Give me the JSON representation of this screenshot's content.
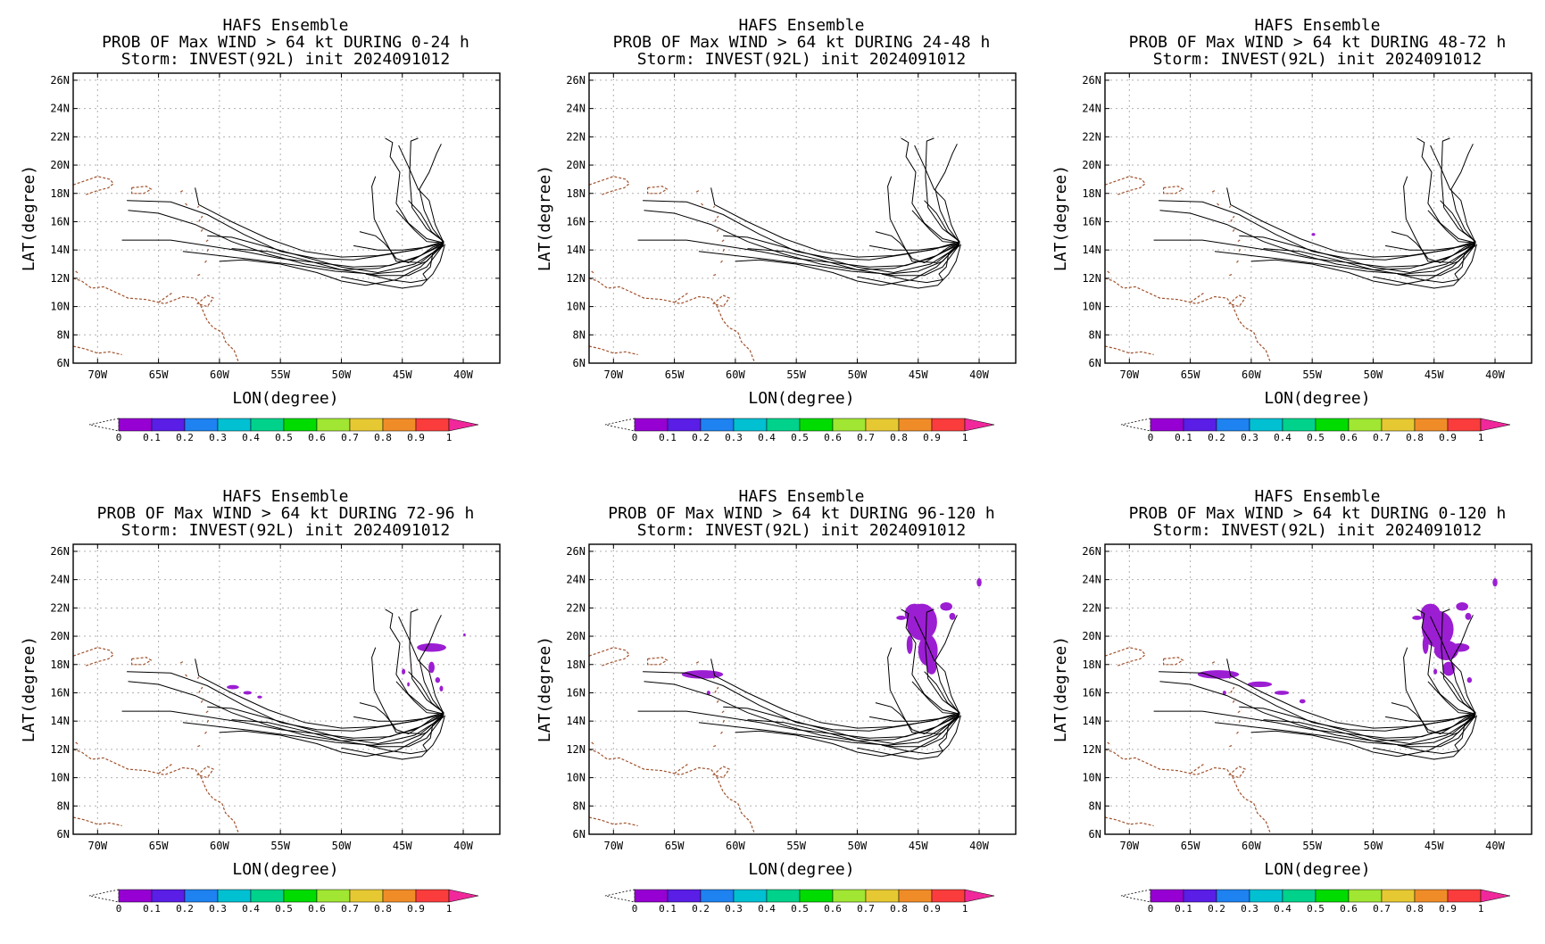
{
  "common": {
    "title_line1": "HAFS Ensemble",
    "title_line3": "Storm: INVEST(92L) init 2024091012",
    "xlabel": "LON(degree)",
    "ylabel": "LAT(degree)",
    "colorbar_ticks": [
      "0",
      "0.1",
      "0.2",
      "0.3",
      "0.4",
      "0.5",
      "0.6",
      "0.7",
      "0.8",
      "0.9",
      "1"
    ],
    "colorbar_colors": [
      "#9600d2",
      "#5a1ee6",
      "#1e82f0",
      "#00c0d2",
      "#00d28c",
      "#00dc00",
      "#a0e632",
      "#e6c832",
      "#f08c28",
      "#fa3c3c"
    ],
    "colorbar_over_color": "#f0289b",
    "coast_color": "#a0522d",
    "track_color": "#000000",
    "prob_color": "#9b1ed2"
  },
  "chart_data": [
    {
      "type": "contour-map",
      "title": "PROB OF Max WIND > 64 kt DURING  0-24 h",
      "xlim": [
        -72,
        -37
      ],
      "ylim": [
        6,
        26.5
      ],
      "xticks": [
        -70,
        -65,
        -60,
        -55,
        -50,
        -45,
        -40
      ],
      "xtick_labels": [
        "70W",
        "65W",
        "60W",
        "55W",
        "50W",
        "45W",
        "40W"
      ],
      "yticks": [
        6,
        8,
        10,
        12,
        14,
        16,
        18,
        20,
        22,
        24,
        26
      ],
      "ytick_labels": [
        "6N",
        "8N",
        "10N",
        "12N",
        "14N",
        "16N",
        "18N",
        "20N",
        "22N",
        "24N",
        "26N"
      ],
      "grid": true,
      "prob_regions": []
    },
    {
      "type": "contour-map",
      "title": "PROB OF Max WIND > 64 kt DURING 24-48 h",
      "xlim": [
        -72,
        -37
      ],
      "ylim": [
        6,
        26.5
      ],
      "xticks": [
        -70,
        -65,
        -60,
        -55,
        -50,
        -45,
        -40
      ],
      "xtick_labels": [
        "70W",
        "65W",
        "60W",
        "55W",
        "50W",
        "45W",
        "40W"
      ],
      "yticks": [
        6,
        8,
        10,
        12,
        14,
        16,
        18,
        20,
        22,
        24,
        26
      ],
      "ytick_labels": [
        "6N",
        "8N",
        "10N",
        "12N",
        "14N",
        "16N",
        "18N",
        "20N",
        "22N",
        "24N",
        "26N"
      ],
      "grid": true,
      "prob_regions": []
    },
    {
      "type": "contour-map",
      "title": "PROB OF Max WIND > 64 kt DURING 48-72 h",
      "xlim": [
        -72,
        -37
      ],
      "ylim": [
        6,
        26.5
      ],
      "xticks": [
        -70,
        -65,
        -60,
        -55,
        -50,
        -45,
        -40
      ],
      "xtick_labels": [
        "70W",
        "65W",
        "60W",
        "55W",
        "50W",
        "45W",
        "40W"
      ],
      "yticks": [
        6,
        8,
        10,
        12,
        14,
        16,
        18,
        20,
        22,
        24,
        26
      ],
      "ytick_labels": [
        "6N",
        "8N",
        "10N",
        "12N",
        "14N",
        "16N",
        "18N",
        "20N",
        "22N",
        "24N",
        "26N"
      ],
      "grid": true,
      "prob_regions": [
        {
          "lon": -54.9,
          "lat": 15.1,
          "dlon": 0.3,
          "dlat": 0.2
        }
      ]
    },
    {
      "type": "contour-map",
      "title": "PROB OF Max WIND > 64 kt DURING 72-96 h",
      "xlim": [
        -72,
        -37
      ],
      "ylim": [
        6,
        26.5
      ],
      "xticks": [
        -70,
        -65,
        -60,
        -55,
        -50,
        -45,
        -40
      ],
      "xtick_labels": [
        "70W",
        "65W",
        "60W",
        "55W",
        "50W",
        "45W",
        "40W"
      ],
      "yticks": [
        6,
        8,
        10,
        12,
        14,
        16,
        18,
        20,
        22,
        24,
        26
      ],
      "ytick_labels": [
        "6N",
        "8N",
        "10N",
        "12N",
        "14N",
        "16N",
        "18N",
        "20N",
        "22N",
        "24N",
        "26N"
      ],
      "grid": true,
      "prob_regions": [
        {
          "lon": -58.9,
          "lat": 16.4,
          "dlon": 1.0,
          "dlat": 0.3
        },
        {
          "lon": -57.7,
          "lat": 16.0,
          "dlon": 0.7,
          "dlat": 0.25
        },
        {
          "lon": -56.7,
          "lat": 15.7,
          "dlon": 0.4,
          "dlat": 0.2
        },
        {
          "lon": -42.6,
          "lat": 19.2,
          "dlon": 2.4,
          "dlat": 0.6
        },
        {
          "lon": -39.9,
          "lat": 20.1,
          "dlon": 0.2,
          "dlat": 0.2
        },
        {
          "lon": -42.6,
          "lat": 17.8,
          "dlon": 0.5,
          "dlat": 0.8
        },
        {
          "lon": -42.1,
          "lat": 16.9,
          "dlon": 0.4,
          "dlat": 0.4
        },
        {
          "lon": -41.8,
          "lat": 16.3,
          "dlon": 0.3,
          "dlat": 0.4
        },
        {
          "lon": -44.9,
          "lat": 17.5,
          "dlon": 0.3,
          "dlat": 0.4
        },
        {
          "lon": -44.5,
          "lat": 16.6,
          "dlon": 0.2,
          "dlat": 0.3
        }
      ]
    },
    {
      "type": "contour-map",
      "title": "PROB OF Max WIND > 64 kt DURING 96-120 h",
      "xlim": [
        -72,
        -37
      ],
      "ylim": [
        6,
        26.5
      ],
      "xticks": [
        -70,
        -65,
        -60,
        -55,
        -50,
        -45,
        -40
      ],
      "xtick_labels": [
        "70W",
        "65W",
        "60W",
        "55W",
        "50W",
        "45W",
        "40W"
      ],
      "yticks": [
        6,
        8,
        10,
        12,
        14,
        16,
        18,
        20,
        22,
        24,
        26
      ],
      "ytick_labels": [
        "6N",
        "8N",
        "10N",
        "12N",
        "14N",
        "16N",
        "18N",
        "20N",
        "22N",
        "24N",
        "26N"
      ],
      "grid": true,
      "prob_regions": [
        {
          "lon": -62.7,
          "lat": 17.3,
          "dlon": 3.4,
          "dlat": 0.6
        },
        {
          "lon": -62.2,
          "lat": 16.0,
          "dlon": 0.3,
          "dlat": 0.3
        },
        {
          "lon": -45.3,
          "lat": 21.6,
          "dlon": 1.6,
          "dlat": 1.4
        },
        {
          "lon": -44.7,
          "lat": 21.0,
          "dlon": 2.5,
          "dlat": 2.6
        },
        {
          "lon": -44.2,
          "lat": 19.0,
          "dlon": 1.6,
          "dlat": 2.2
        },
        {
          "lon": -43.9,
          "lat": 17.8,
          "dlon": 0.8,
          "dlat": 1.0
        },
        {
          "lon": -46.4,
          "lat": 21.3,
          "dlon": 0.8,
          "dlat": 0.3
        },
        {
          "lon": -45.7,
          "lat": 19.4,
          "dlon": 0.5,
          "dlat": 1.3
        },
        {
          "lon": -42.7,
          "lat": 22.1,
          "dlon": 1.0,
          "dlat": 0.6
        },
        {
          "lon": -42.2,
          "lat": 21.4,
          "dlon": 0.5,
          "dlat": 0.5
        },
        {
          "lon": -40.0,
          "lat": 23.8,
          "dlon": 0.4,
          "dlat": 0.6
        }
      ]
    },
    {
      "type": "contour-map",
      "title": "PROB OF Max WIND > 64 kt DURING 0-120 h",
      "xlim": [
        -72,
        -37
      ],
      "ylim": [
        6,
        26.5
      ],
      "xticks": [
        -70,
        -65,
        -60,
        -55,
        -50,
        -45,
        -40
      ],
      "xtick_labels": [
        "70W",
        "65W",
        "60W",
        "55W",
        "50W",
        "45W",
        "40W"
      ],
      "yticks": [
        6,
        8,
        10,
        12,
        14,
        16,
        18,
        20,
        22,
        24,
        26
      ],
      "ytick_labels": [
        "6N",
        "8N",
        "10N",
        "12N",
        "14N",
        "16N",
        "18N",
        "20N",
        "22N",
        "24N",
        "26N"
      ],
      "grid": true,
      "prob_regions": [
        {
          "lon": -62.7,
          "lat": 17.3,
          "dlon": 3.4,
          "dlat": 0.6
        },
        {
          "lon": -59.3,
          "lat": 16.6,
          "dlon": 2.0,
          "dlat": 0.4
        },
        {
          "lon": -57.5,
          "lat": 16.0,
          "dlon": 1.2,
          "dlat": 0.3
        },
        {
          "lon": -55.8,
          "lat": 15.4,
          "dlon": 0.5,
          "dlat": 0.3
        },
        {
          "lon": -62.2,
          "lat": 16.0,
          "dlon": 0.3,
          "dlat": 0.3
        },
        {
          "lon": -45.3,
          "lat": 21.6,
          "dlon": 1.6,
          "dlat": 1.4
        },
        {
          "lon": -44.7,
          "lat": 20.5,
          "dlon": 2.6,
          "dlat": 2.6
        },
        {
          "lon": -44.0,
          "lat": 19.0,
          "dlon": 2.0,
          "dlat": 1.4
        },
        {
          "lon": -42.9,
          "lat": 19.2,
          "dlon": 1.6,
          "dlat": 0.6
        },
        {
          "lon": -43.8,
          "lat": 17.7,
          "dlon": 1.0,
          "dlat": 1.0
        },
        {
          "lon": -46.4,
          "lat": 21.3,
          "dlon": 0.8,
          "dlat": 0.3
        },
        {
          "lon": -45.7,
          "lat": 19.4,
          "dlon": 0.5,
          "dlat": 1.3
        },
        {
          "lon": -42.7,
          "lat": 22.1,
          "dlon": 1.0,
          "dlat": 0.6
        },
        {
          "lon": -42.2,
          "lat": 21.4,
          "dlon": 0.5,
          "dlat": 0.5
        },
        {
          "lon": -40.0,
          "lat": 23.8,
          "dlon": 0.4,
          "dlat": 0.6
        },
        {
          "lon": -42.1,
          "lat": 16.9,
          "dlon": 0.4,
          "dlat": 0.4
        },
        {
          "lon": -44.9,
          "lat": 17.5,
          "dlon": 0.3,
          "dlat": 0.4
        }
      ]
    }
  ],
  "tracks": [
    [
      [
        -41.6,
        14.5
      ],
      [
        -43.5,
        13.6
      ],
      [
        -46,
        12.9
      ],
      [
        -49,
        12.8
      ],
      [
        -52,
        13.1
      ],
      [
        -55,
        13.4
      ],
      [
        -58,
        13.9
      ],
      [
        -61,
        14.3
      ],
      [
        -64,
        14.7
      ],
      [
        -68,
        14.7
      ]
    ],
    [
      [
        -41.6,
        14.4
      ],
      [
        -44,
        13.4
      ],
      [
        -47,
        12.7
      ],
      [
        -50,
        12.6
      ],
      [
        -53,
        13.0
      ],
      [
        -56,
        13.7
      ],
      [
        -59,
        14.6
      ],
      [
        -62,
        15.8
      ],
      [
        -65,
        16.6
      ],
      [
        -67.5,
        16.8
      ]
    ],
    [
      [
        -41.6,
        14.6
      ],
      [
        -44,
        14.0
      ],
      [
        -47,
        13.6
      ],
      [
        -50,
        13.5
      ],
      [
        -53,
        13.9
      ],
      [
        -56,
        14.8
      ],
      [
        -59,
        16.0
      ],
      [
        -61.7,
        17.2
      ],
      [
        -62,
        18.4
      ]
    ],
    [
      [
        -41.6,
        14.5
      ],
      [
        -43,
        13.2
      ],
      [
        -45,
        12.5
      ],
      [
        -47.5,
        12.3
      ],
      [
        -50.5,
        12.5
      ],
      [
        -53.5,
        12.9
      ],
      [
        -57,
        13.3
      ],
      [
        -60,
        13.6
      ],
      [
        -63,
        13.9
      ]
    ],
    [
      [
        -41.6,
        14.6
      ],
      [
        -43.5,
        14.1
      ],
      [
        -46,
        13.7
      ],
      [
        -49,
        13.3
      ],
      [
        -52,
        13.4
      ],
      [
        -55,
        13.9
      ],
      [
        -58,
        15.1
      ],
      [
        -61,
        16.5
      ],
      [
        -64,
        17.4
      ],
      [
        -67.6,
        17.5
      ]
    ],
    [
      [
        -41.6,
        14.4
      ],
      [
        -43,
        12.8
      ],
      [
        -44.5,
        12.2
      ],
      [
        -47,
        12.2
      ],
      [
        -50,
        12.6
      ],
      [
        -53,
        13.3
      ],
      [
        -56,
        13.9
      ],
      [
        -59,
        14.1
      ]
    ],
    [
      [
        -41.6,
        14.3
      ],
      [
        -44,
        13.0
      ],
      [
        -47,
        12.4
      ],
      [
        -50,
        12.8
      ],
      [
        -53,
        13.5
      ],
      [
        -56,
        14.2
      ],
      [
        -59,
        14.9
      ],
      [
        -61,
        15.0
      ]
    ],
    [
      [
        -41.6,
        14.5
      ],
      [
        -43,
        14.2
      ],
      [
        -45,
        14.0
      ],
      [
        -47,
        14.0
      ],
      [
        -49,
        14.3
      ]
    ],
    [
      [
        -41.6,
        14.5
      ],
      [
        -42.5,
        13.8
      ],
      [
        -42.7,
        12.8
      ],
      [
        -43.3,
        12.3
      ],
      [
        -43,
        11.9
      ],
      [
        -44.3,
        11.7
      ],
      [
        -46,
        11.9
      ],
      [
        -48,
        12.3
      ]
    ],
    [
      [
        -41.6,
        14.4
      ],
      [
        -43.5,
        12.8
      ],
      [
        -45.5,
        11.9
      ],
      [
        -48,
        11.5
      ],
      [
        -50,
        11.8
      ],
      [
        -52,
        12.4
      ],
      [
        -55,
        13.0
      ],
      [
        -58,
        13.3
      ],
      [
        -60,
        13.2
      ]
    ],
    [
      [
        -41.5,
        14.4
      ],
      [
        -41.9,
        13.2
      ],
      [
        -42.5,
        12.3
      ],
      [
        -43.4,
        11.5
      ],
      [
        -45,
        11.3
      ],
      [
        -47,
        11.6
      ],
      [
        -50,
        12.1
      ]
    ],
    [
      [
        -41.6,
        14.4
      ],
      [
        -43.5,
        13.1
      ],
      [
        -45.5,
        13.2
      ],
      [
        -46.5,
        14.8
      ],
      [
        -47.3,
        16.2
      ],
      [
        -47.5,
        18.5
      ],
      [
        -47.2,
        19.2
      ]
    ],
    [
      [
        -41.6,
        14.5
      ],
      [
        -43,
        14.8
      ],
      [
        -44.5,
        15.9
      ],
      [
        -45.5,
        17.3
      ],
      [
        -45.2,
        19.5
      ],
      [
        -46,
        20.6
      ],
      [
        -45.8,
        21.6
      ],
      [
        -46.4,
        21.9
      ]
    ],
    [
      [
        -41.6,
        14.6
      ],
      [
        -43,
        15.5
      ],
      [
        -44.2,
        17.0
      ],
      [
        -44.4,
        19.2
      ],
      [
        -44.3,
        21.7
      ],
      [
        -43.7,
        21.9
      ]
    ],
    [
      [
        -41.6,
        14.5
      ],
      [
        -42.5,
        15.5
      ],
      [
        -43.2,
        16.8
      ],
      [
        -43.6,
        18.3
      ],
      [
        -42.8,
        19.5
      ],
      [
        -42.2,
        20.8
      ],
      [
        -41.8,
        21.5
      ]
    ],
    [
      [
        -41.6,
        14.5
      ],
      [
        -42.3,
        15.8
      ],
      [
        -42.8,
        17.5
      ],
      [
        -43.7,
        18.3
      ],
      [
        -44.5,
        19.9
      ],
      [
        -45.3,
        21.4
      ]
    ],
    [
      [
        -41.6,
        14.5
      ],
      [
        -43,
        14.6
      ],
      [
        -44,
        15.4
      ],
      [
        -45.5,
        16.8
      ]
    ],
    [
      [
        -41.6,
        14.6
      ],
      [
        -42.6,
        15.3
      ],
      [
        -43.5,
        16.6
      ],
      [
        -44.5,
        17.5
      ]
    ],
    [
      [
        -41.6,
        14.5
      ],
      [
        -42.5,
        14.2
      ],
      [
        -43.5,
        13.6
      ],
      [
        -44.5,
        13.1
      ],
      [
        -45.5,
        13.4
      ],
      [
        -46,
        14.0
      ],
      [
        -46.5,
        14.5
      ],
      [
        -47.2,
        15.0
      ],
      [
        -48.5,
        15.3
      ]
    ]
  ],
  "coastlines": [
    [
      [
        -72,
        18.6
      ],
      [
        -71,
        18.9
      ],
      [
        -70,
        19.2
      ],
      [
        -69,
        19.0
      ],
      [
        -68.7,
        18.7
      ],
      [
        -69.1,
        18.4
      ],
      [
        -70,
        18.2
      ],
      [
        -71,
        17.9
      ]
    ],
    [
      [
        -67.2,
        18.4
      ],
      [
        -66,
        18.5
      ],
      [
        -65.6,
        18.3
      ],
      [
        -66.2,
        18.0
      ],
      [
        -67.2,
        18.0
      ],
      [
        -67.2,
        18.4
      ]
    ],
    [
      [
        -72,
        12.0
      ],
      [
        -71.3,
        11.8
      ],
      [
        -70.5,
        11.3
      ],
      [
        -69.5,
        11.4
      ],
      [
        -68.5,
        11.0
      ],
      [
        -67.5,
        10.6
      ],
      [
        -66,
        10.5
      ],
      [
        -64.5,
        10.2
      ],
      [
        -63,
        10.7
      ],
      [
        -62,
        10.6
      ],
      [
        -61.5,
        10.0
      ],
      [
        -61,
        9.0
      ],
      [
        -60.5,
        8.5
      ],
      [
        -59.8,
        8.2
      ],
      [
        -59.5,
        7.5
      ],
      [
        -58.8,
        6.9
      ],
      [
        -58.4,
        6.0
      ]
    ],
    [
      [
        -61,
        10.8
      ],
      [
        -60.5,
        10.6
      ],
      [
        -61.0,
        10.0
      ],
      [
        -61.8,
        10.2
      ],
      [
        -61,
        10.8
      ]
    ],
    [
      [
        -61.8,
        12.2
      ],
      [
        -61.5,
        12.3
      ]
    ],
    [
      [
        -61.2,
        13.1
      ],
      [
        -61.0,
        13.3
      ]
    ],
    [
      [
        -61.0,
        13.9
      ],
      [
        -60.9,
        14.1
      ]
    ],
    [
      [
        -61.1,
        14.6
      ],
      [
        -60.8,
        14.8
      ]
    ],
    [
      [
        -61.5,
        15.3
      ],
      [
        -61.3,
        15.6
      ]
    ],
    [
      [
        -61.7,
        16.0
      ],
      [
        -61.4,
        16.4
      ]
    ],
    [
      [
        -61.8,
        17.0
      ],
      [
        -61.7,
        17.1
      ]
    ],
    [
      [
        -62.8,
        17.3
      ],
      [
        -62.6,
        17.1
      ]
    ],
    [
      [
        -63.2,
        18.1
      ],
      [
        -63.0,
        18.2
      ]
    ],
    [
      [
        -65,
        10.3
      ],
      [
        -64.5,
        10.6
      ],
      [
        -64,
        10.9
      ],
      [
        -63.8,
        11.0
      ]
    ],
    [
      [
        -72,
        7.2
      ],
      [
        -71,
        7.0
      ],
      [
        -70,
        6.7
      ],
      [
        -69,
        6.8
      ],
      [
        -68,
        6.6
      ]
    ],
    [
      [
        -71.8,
        12.5
      ],
      [
        -71.5,
        12.3
      ]
    ]
  ]
}
